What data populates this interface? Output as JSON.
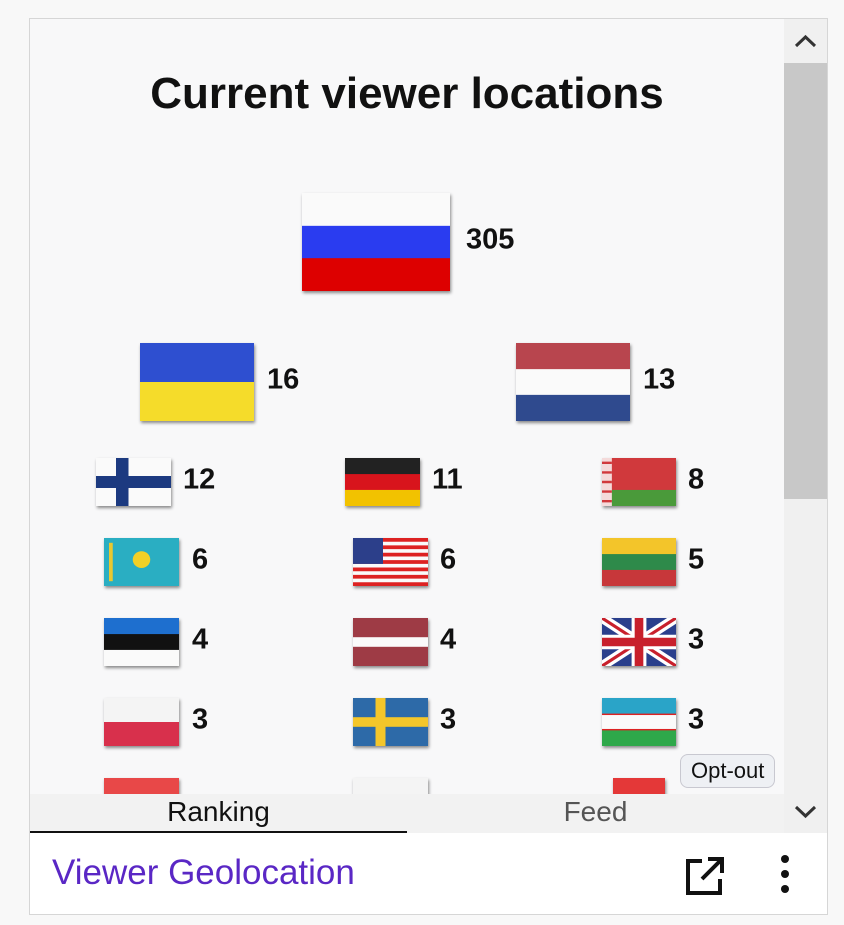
{
  "title": "Current viewer locations",
  "locations": [
    {
      "count": 305
    },
    {
      "count": 16
    },
    {
      "count": 13
    },
    {
      "count": 12
    },
    {
      "count": 11
    },
    {
      "count": 8
    },
    {
      "count": 6
    },
    {
      "count": 6
    },
    {
      "count": 5
    },
    {
      "count": 4
    },
    {
      "count": 4
    },
    {
      "count": 3
    },
    {
      "count": 3
    },
    {
      "count": 3
    },
    {
      "count": 3
    }
  ],
  "opt_out": "Opt-out",
  "tabs": [
    "Ranking",
    "Feed"
  ],
  "footer": {
    "title": "Viewer Geolocation"
  }
}
